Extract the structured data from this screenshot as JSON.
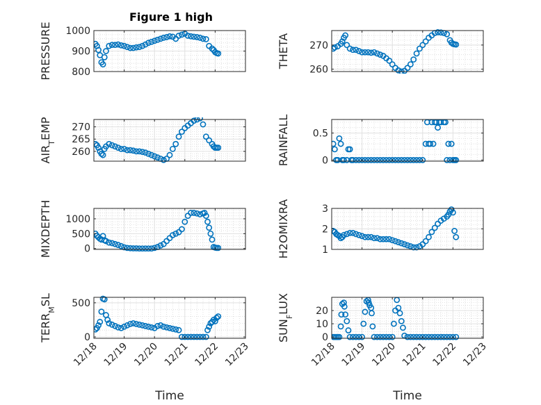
{
  "figure_title": "Figure 1 high",
  "colors": {
    "marker": "#0072BD",
    "axis": "#262626",
    "grid": "#b0b0b0"
  },
  "x_tick_labels": [
    "12/18",
    "12/19",
    "12/20",
    "12/21",
    "12/22",
    "12/23"
  ],
  "x_axis_label": "Time",
  "chart_data": [
    {
      "type": "scatter",
      "ylabel": "PRESSURE",
      "xlim": [
        0,
        5
      ],
      "ylim": [
        800,
        1000
      ],
      "yticks": [
        800,
        900,
        1000
      ],
      "grid": true,
      "x": [
        0.05,
        0.1,
        0.15,
        0.2,
        0.25,
        0.3,
        0.35,
        0.4,
        0.5,
        0.6,
        0.7,
        0.8,
        0.9,
        1.0,
        1.1,
        1.2,
        1.3,
        1.4,
        1.5,
        1.6,
        1.7,
        1.8,
        1.9,
        2.0,
        2.1,
        2.2,
        2.3,
        2.4,
        2.5,
        2.6,
        2.7,
        2.8,
        2.9,
        3.0,
        3.1,
        3.2,
        3.3,
        3.4,
        3.5,
        3.6,
        3.7,
        3.8,
        3.9,
        3.95,
        4.0,
        4.05,
        4.1
      ],
      "y": [
        935,
        925,
        905,
        880,
        845,
        835,
        870,
        900,
        925,
        930,
        930,
        932,
        928,
        925,
        920,
        915,
        915,
        918,
        920,
        925,
        932,
        940,
        945,
        950,
        955,
        960,
        965,
        968,
        972,
        970,
        960,
        975,
        980,
        985,
        975,
        972,
        970,
        968,
        965,
        960,
        958,
        925,
        912,
        905,
        895,
        890,
        888
      ]
    },
    {
      "type": "scatter",
      "ylabel": "THETA",
      "xlim": [
        0,
        5
      ],
      "ylim": [
        259,
        276
      ],
      "yticks": [
        260,
        270
      ],
      "grid": true,
      "x": [
        0.05,
        0.1,
        0.2,
        0.3,
        0.35,
        0.4,
        0.45,
        0.5,
        0.6,
        0.7,
        0.8,
        0.9,
        1.0,
        1.1,
        1.2,
        1.3,
        1.4,
        1.5,
        1.6,
        1.7,
        1.8,
        1.9,
        2.0,
        2.1,
        2.2,
        2.3,
        2.4,
        2.5,
        2.6,
        2.7,
        2.8,
        2.9,
        3.0,
        3.1,
        3.2,
        3.3,
        3.4,
        3.5,
        3.6,
        3.7,
        3.8,
        3.9,
        3.95,
        4.0,
        4.05,
        4.1
      ],
      "y": [
        268.5,
        269,
        269.5,
        270.5,
        271.5,
        273,
        274,
        270,
        268.5,
        268,
        268,
        267.5,
        267,
        267,
        267,
        266.8,
        267,
        266.5,
        266,
        265.5,
        264.5,
        263.5,
        262,
        260.5,
        259.5,
        259,
        259.3,
        260.5,
        262,
        264,
        266.5,
        268.5,
        270,
        271.5,
        273,
        274,
        275,
        275.3,
        275.2,
        275,
        274.5,
        272,
        271,
        270.5,
        270.3,
        270.2
      ]
    },
    {
      "type": "scatter",
      "ylabel": "AIR_TEMP",
      "xlim": [
        0,
        5
      ],
      "ylim": [
        256,
        273
      ],
      "yticks": [
        260,
        265,
        270
      ],
      "grid": true,
      "x": [
        0.05,
        0.1,
        0.15,
        0.2,
        0.25,
        0.3,
        0.35,
        0.4,
        0.5,
        0.6,
        0.7,
        0.8,
        0.9,
        1.0,
        1.1,
        1.2,
        1.3,
        1.4,
        1.5,
        1.6,
        1.7,
        1.8,
        1.9,
        2.0,
        2.1,
        2.2,
        2.3,
        2.4,
        2.5,
        2.6,
        2.7,
        2.8,
        2.9,
        3.0,
        3.1,
        3.2,
        3.3,
        3.4,
        3.5,
        3.6,
        3.7,
        3.8,
        3.9,
        3.95,
        4.0,
        4.05,
        4.1
      ],
      "y": [
        263,
        262.5,
        261.5,
        260,
        259,
        258.5,
        261,
        262,
        263,
        262.5,
        262,
        261.5,
        261,
        261,
        260.5,
        260.5,
        260.3,
        260,
        260,
        259.8,
        259.5,
        259,
        258.5,
        258,
        257.5,
        257,
        256.5,
        257,
        258.5,
        261,
        263,
        266,
        268,
        269.5,
        270.5,
        271.5,
        272.5,
        273,
        273.5,
        271,
        266,
        264.5,
        263,
        262,
        261.5,
        261.5,
        261.5
      ]
    },
    {
      "type": "scatter",
      "ylabel": "RAINFALL",
      "xlim": [
        0,
        5
      ],
      "ylim": [
        -0.02,
        0.75
      ],
      "yticks": [
        0,
        0.5
      ],
      "grid": true,
      "x": [
        0.05,
        0.1,
        0.15,
        0.2,
        0.25,
        0.3,
        0.35,
        0.4,
        0.5,
        0.55,
        0.6,
        0.65,
        0.7,
        0.8,
        0.9,
        1.0,
        1.1,
        1.2,
        1.3,
        1.4,
        1.5,
        1.6,
        1.7,
        1.8,
        1.9,
        2.0,
        2.1,
        2.2,
        2.3,
        2.4,
        2.5,
        2.6,
        2.7,
        2.8,
        2.9,
        3.0,
        3.1,
        3.15,
        3.2,
        3.25,
        3.3,
        3.35,
        3.4,
        3.45,
        3.5,
        3.55,
        3.6,
        3.7,
        3.75,
        3.8,
        3.85,
        3.9,
        3.95,
        4.0,
        4.05,
        4.1
      ],
      "y": [
        0.3,
        0.2,
        0.0,
        0.0,
        0.4,
        0.3,
        0.0,
        0.0,
        0.0,
        0.2,
        0.2,
        0.0,
        0.0,
        0.0,
        0.0,
        0.0,
        0.0,
        0.0,
        0.0,
        0.0,
        0.0,
        0.0,
        0.0,
        0.0,
        0.0,
        0.0,
        0.0,
        0.0,
        0.0,
        0.0,
        0.0,
        0.0,
        0.0,
        0.0,
        0.0,
        0.0,
        0.3,
        0.7,
        0.3,
        0.3,
        0.7,
        0.3,
        0.7,
        0.7,
        0.6,
        0.7,
        0.7,
        0.7,
        0.7,
        0.0,
        0.3,
        0.0,
        0.3,
        0.0,
        0.0,
        0.0
      ]
    },
    {
      "type": "scatter",
      "ylabel": "MIXDEPTH",
      "xlim": [
        0,
        5
      ],
      "ylim": [
        -30,
        1350
      ],
      "yticks": [
        0,
        500,
        1000
      ],
      "grid": true,
      "x": [
        0.05,
        0.1,
        0.15,
        0.2,
        0.25,
        0.3,
        0.35,
        0.4,
        0.5,
        0.6,
        0.7,
        0.8,
        0.9,
        1.0,
        1.1,
        1.2,
        1.3,
        1.4,
        1.5,
        1.6,
        1.7,
        1.8,
        1.9,
        2.0,
        2.1,
        2.2,
        2.3,
        2.4,
        2.5,
        2.6,
        2.7,
        2.8,
        2.9,
        3.0,
        3.1,
        3.2,
        3.3,
        3.4,
        3.5,
        3.6,
        3.65,
        3.7,
        3.75,
        3.8,
        3.85,
        3.9,
        3.95,
        4.0,
        4.05,
        4.1
      ],
      "y": [
        500,
        430,
        380,
        330,
        300,
        420,
        280,
        250,
        200,
        180,
        150,
        120,
        80,
        40,
        20,
        10,
        5,
        5,
        0,
        0,
        0,
        0,
        0,
        20,
        50,
        100,
        150,
        250,
        350,
        450,
        500,
        550,
        650,
        900,
        1100,
        1200,
        1200,
        1180,
        1150,
        1180,
        1200,
        1100,
        900,
        700,
        500,
        300,
        50,
        30,
        20,
        20
      ]
    },
    {
      "type": "scatter",
      "ylabel": "H2OMIXRA",
      "xlim": [
        0,
        5
      ],
      "ylim": [
        1,
        3
      ],
      "yticks": [
        1,
        2,
        3
      ],
      "grid": true,
      "x": [
        0.05,
        0.1,
        0.15,
        0.2,
        0.25,
        0.3,
        0.35,
        0.4,
        0.5,
        0.6,
        0.7,
        0.8,
        0.9,
        1.0,
        1.1,
        1.2,
        1.3,
        1.4,
        1.5,
        1.6,
        1.7,
        1.8,
        1.9,
        2.0,
        2.1,
        2.2,
        2.3,
        2.4,
        2.5,
        2.6,
        2.7,
        2.8,
        2.9,
        3.0,
        3.1,
        3.2,
        3.3,
        3.4,
        3.5,
        3.6,
        3.7,
        3.8,
        3.85,
        3.9,
        3.95,
        4.0,
        4.05,
        4.1
      ],
      "y": [
        1.9,
        1.85,
        1.75,
        1.7,
        1.65,
        1.55,
        1.6,
        1.7,
        1.75,
        1.8,
        1.8,
        1.75,
        1.7,
        1.65,
        1.6,
        1.6,
        1.6,
        1.55,
        1.55,
        1.5,
        1.5,
        1.5,
        1.5,
        1.45,
        1.4,
        1.35,
        1.3,
        1.25,
        1.2,
        1.15,
        1.1,
        1.1,
        1.15,
        1.25,
        1.4,
        1.6,
        1.85,
        2.05,
        2.25,
        2.4,
        2.5,
        2.6,
        2.7,
        2.85,
        2.95,
        2.8,
        1.9,
        1.6
      ]
    },
    {
      "type": "scatter",
      "ylabel": "TERR_MSL",
      "xlim": [
        0,
        5
      ],
      "ylim": [
        -20,
        580
      ],
      "yticks": [
        0,
        500
      ],
      "grid": true,
      "x": [
        0.05,
        0.1,
        0.15,
        0.2,
        0.25,
        0.3,
        0.35,
        0.4,
        0.45,
        0.5,
        0.6,
        0.7,
        0.8,
        0.9,
        1.0,
        1.1,
        1.2,
        1.3,
        1.4,
        1.5,
        1.6,
        1.7,
        1.8,
        1.9,
        2.0,
        2.1,
        2.2,
        2.3,
        2.4,
        2.5,
        2.6,
        2.7,
        2.8,
        2.9,
        3.0,
        3.1,
        3.2,
        3.3,
        3.4,
        3.5,
        3.6,
        3.7,
        3.75,
        3.8,
        3.85,
        3.9,
        3.95,
        4.0,
        4.05,
        4.1
      ],
      "y": [
        110,
        130,
        170,
        220,
        370,
        560,
        550,
        320,
        250,
        200,
        180,
        160,
        140,
        130,
        150,
        170,
        190,
        200,
        190,
        180,
        170,
        160,
        150,
        140,
        130,
        160,
        170,
        150,
        140,
        130,
        120,
        110,
        100,
        0,
        0,
        0,
        0,
        0,
        0,
        0,
        0,
        0,
        100,
        150,
        200,
        220,
        250,
        230,
        280,
        300
      ]
    },
    {
      "type": "scatter",
      "ylabel": "SUN_FLUX",
      "xlim": [
        0,
        5
      ],
      "ylim": [
        -1,
        30
      ],
      "yticks": [
        0,
        10,
        20
      ],
      "grid": true,
      "x": [
        0.05,
        0.1,
        0.15,
        0.2,
        0.25,
        0.3,
        0.32,
        0.35,
        0.4,
        0.42,
        0.45,
        0.5,
        0.55,
        0.6,
        0.7,
        0.8,
        0.9,
        1.0,
        1.05,
        1.1,
        1.15,
        1.2,
        1.22,
        1.25,
        1.3,
        1.32,
        1.35,
        1.4,
        1.5,
        1.6,
        1.7,
        1.8,
        1.9,
        2.0,
        2.05,
        2.1,
        2.15,
        2.2,
        2.25,
        2.3,
        2.35,
        2.4,
        2.5,
        2.6,
        2.7,
        2.8,
        2.9,
        3.0,
        3.1,
        3.2,
        3.3,
        3.4,
        3.5,
        3.6,
        3.7,
        3.8,
        3.9,
        4.0,
        4.1
      ],
      "y": [
        0,
        0,
        0,
        0,
        0,
        8,
        17,
        25,
        26,
        23,
        17,
        12,
        5,
        0,
        0,
        0,
        0,
        0,
        10,
        19,
        27,
        28,
        26,
        24,
        22,
        18,
        8,
        0,
        0,
        0,
        0,
        0,
        0,
        0,
        10,
        20,
        28,
        22,
        18,
        12,
        7,
        1,
        0,
        0,
        0,
        0,
        0,
        0,
        0,
        0,
        0,
        0,
        0,
        0,
        0,
        0,
        0,
        0,
        0
      ]
    }
  ]
}
